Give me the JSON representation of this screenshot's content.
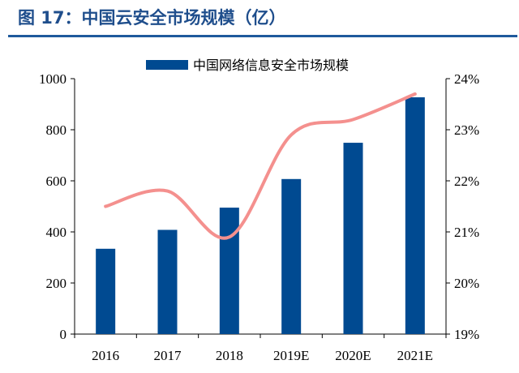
{
  "title": "图 17：中国云安全市场规模（亿）",
  "chart_data": {
    "type": "bar+line",
    "title": "图 17：中国云安全市场规模（亿）",
    "categories": [
      "2016",
      "2017",
      "2018",
      "2019E",
      "2020E",
      "2021E"
    ],
    "series": [
      {
        "name": "中国网络信息安全市场规模",
        "type": "bar",
        "axis": "left",
        "color": "#004a91",
        "values": [
          334,
          408,
          495,
          607,
          749,
          927
        ]
      },
      {
        "type": "line",
        "axis": "right",
        "color": "#f4908e",
        "smooth": true,
        "values": [
          21.5,
          21.8,
          20.9,
          22.9,
          23.2,
          23.7
        ]
      }
    ],
    "left_axis": {
      "ylim": [
        0,
        1000
      ],
      "ticks": [
        "0",
        "200",
        "400",
        "600",
        "800",
        "1000"
      ]
    },
    "right_axis": {
      "ylim": [
        19,
        24
      ],
      "ticks": [
        "19%",
        "20%",
        "21%",
        "22%",
        "23%",
        "24%"
      ]
    },
    "grid": false,
    "legend": "top"
  }
}
